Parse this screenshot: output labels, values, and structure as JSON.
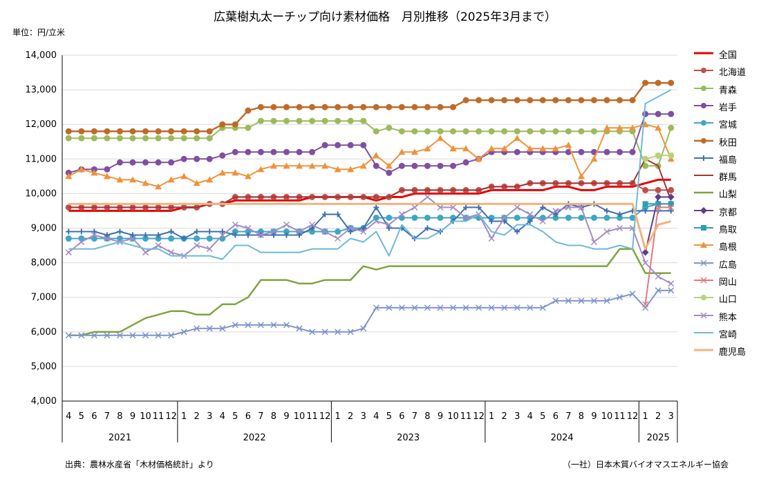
{
  "title": "広葉樹丸太ーチップ向け素材価格　月別推移（2025年3月まで）",
  "unit": "単位：円/立米",
  "source_left": "出典：農林水産省「木材価格統計」より",
  "source_right": "（一社）日本木質バイオマスエネルギー協会",
  "chart_data": {
    "type": "line",
    "ylim": [
      4000,
      14000
    ],
    "yticks": [
      "4,000",
      "5,000",
      "6,000",
      "7,000",
      "8,000",
      "9,000",
      "10,000",
      "11,000",
      "12,000",
      "13,000",
      "14,000"
    ],
    "grid": true,
    "legend_position": "right",
    "x_month_labels": [
      "4",
      "5",
      "6",
      "7",
      "8",
      "9",
      "10",
      "11",
      "12",
      "1",
      "2",
      "3",
      "4",
      "5",
      "6",
      "7",
      "8",
      "9",
      "10",
      "11",
      "12",
      "1",
      "2",
      "3",
      "4",
      "5",
      "6",
      "7",
      "8",
      "9",
      "10",
      "11",
      "12",
      "1",
      "2",
      "3",
      "4",
      "5",
      "6",
      "7",
      "8",
      "9",
      "10",
      "11",
      "12",
      "1",
      "2",
      "3"
    ],
    "x_year_groups": [
      {
        "label": "2021",
        "start": 0,
        "end": 8
      },
      {
        "label": "2022",
        "start": 9,
        "end": 20
      },
      {
        "label": "2023",
        "start": 21,
        "end": 32
      },
      {
        "label": "2024",
        "start": 33,
        "end": 44
      },
      {
        "label": "2025",
        "start": 45,
        "end": 47
      }
    ],
    "series": [
      {
        "name": "全国",
        "color": "#e60000",
        "marker": "none",
        "width": 3,
        "values": [
          9500,
          9500,
          9500,
          9500,
          9500,
          9500,
          9500,
          9500,
          9500,
          9600,
          9600,
          9700,
          9700,
          9800,
          9800,
          9800,
          9800,
          9800,
          9800,
          9900,
          9900,
          9900,
          9900,
          9900,
          9800,
          9900,
          9900,
          10000,
          10000,
          10000,
          10000,
          10000,
          10000,
          10100,
          10100,
          10100,
          10100,
          10100,
          10200,
          10200,
          10100,
          10100,
          10200,
          10200,
          10200,
          10300,
          10400,
          10400
        ]
      },
      {
        "name": "北海道",
        "color": "#c0504d",
        "marker": "circle",
        "width": 2,
        "values": [
          9600,
          9600,
          9600,
          9600,
          9600,
          9600,
          9600,
          9600,
          9600,
          9600,
          9600,
          9700,
          9700,
          9900,
          9900,
          9900,
          9900,
          9900,
          9900,
          9900,
          9900,
          9900,
          9900,
          9900,
          9900,
          9900,
          10100,
          10100,
          10100,
          10100,
          10100,
          10100,
          10100,
          10200,
          10200,
          10200,
          10300,
          10300,
          10300,
          10300,
          10300,
          10300,
          10300,
          10300,
          10300,
          10100,
          10100,
          10100
        ]
      },
      {
        "name": "青森",
        "color": "#9bbb59",
        "marker": "circle",
        "width": 2,
        "values": [
          11600,
          11600,
          11600,
          11600,
          11600,
          11600,
          11600,
          11600,
          11600,
          11600,
          11600,
          11600,
          11900,
          11900,
          11900,
          12100,
          12100,
          12100,
          12100,
          12100,
          12100,
          12100,
          12100,
          12100,
          11800,
          11900,
          11800,
          11800,
          11800,
          11800,
          11800,
          11800,
          11800,
          11800,
          11800,
          11800,
          11800,
          11800,
          11800,
          11800,
          11800,
          11800,
          11800,
          11800,
          11800,
          10800,
          10800,
          11900
        ]
      },
      {
        "name": "岩手",
        "color": "#7f4fa0",
        "marker": "circle",
        "width": 2,
        "values": [
          10600,
          10700,
          10700,
          10700,
          10900,
          10900,
          10900,
          10900,
          10900,
          11000,
          11000,
          11000,
          11100,
          11200,
          11200,
          11200,
          11200,
          11200,
          11200,
          11200,
          11400,
          11400,
          11400,
          11400,
          10800,
          10600,
          10800,
          10800,
          10800,
          10800,
          10800,
          10900,
          11000,
          11200,
          11200,
          11200,
          11200,
          11200,
          11200,
          11200,
          11200,
          11200,
          11200,
          11200,
          11200,
          12300,
          12300,
          12300
        ]
      },
      {
        "name": "宮城",
        "color": "#3fa6c4",
        "marker": "circle",
        "width": 2,
        "values": [
          8700,
          8700,
          8700,
          8700,
          8700,
          8700,
          8700,
          8700,
          8700,
          8700,
          8700,
          8700,
          8700,
          8900,
          8900,
          8900,
          8900,
          8900,
          8900,
          8900,
          8900,
          8900,
          9000,
          9000,
          9300,
          9300,
          9300,
          9300,
          9300,
          9300,
          9300,
          9300,
          9300,
          9300,
          9300,
          9300,
          9300,
          9300,
          9300,
          9300,
          9300,
          9300,
          9300,
          9300,
          9300,
          9600,
          9700,
          9700
        ]
      },
      {
        "name": "秋田",
        "color": "#c06a28",
        "marker": "circle",
        "width": 2.5,
        "values": [
          11800,
          11800,
          11800,
          11800,
          11800,
          11800,
          11800,
          11800,
          11800,
          11800,
          11800,
          11800,
          12000,
          12000,
          12400,
          12500,
          12500,
          12500,
          12500,
          12500,
          12500,
          12500,
          12500,
          12500,
          12500,
          12500,
          12500,
          12500,
          12500,
          12500,
          12500,
          12700,
          12700,
          12700,
          12700,
          12700,
          12700,
          12700,
          12700,
          12700,
          12700,
          12700,
          12700,
          12700,
          12700,
          13200,
          13200,
          13200
        ]
      },
      {
        "name": "福島",
        "color": "#3e6fb0",
        "marker": "plus",
        "width": 2,
        "values": [
          8900,
          8900,
          8900,
          8800,
          8900,
          8800,
          8800,
          8800,
          8900,
          8700,
          8900,
          8900,
          8900,
          8800,
          8800,
          8800,
          8800,
          8800,
          8800,
          9000,
          9400,
          9400,
          8900,
          9000,
          9600,
          9000,
          9000,
          8700,
          9000,
          8900,
          9200,
          9600,
          9600,
          9200,
          9200,
          8900,
          9200,
          9600,
          9400,
          9700,
          9600,
          9700,
          9500,
          9400,
          9500,
          9500,
          9500,
          9500
        ]
      },
      {
        "name": "群馬",
        "color": "#a83232",
        "marker": "none",
        "width": 2,
        "values": [
          9600,
          9600,
          9600,
          9600,
          9600,
          9600,
          9600,
          9600,
          9600,
          9600,
          9600,
          9700,
          9700,
          9900,
          9900,
          9900,
          9900,
          9900,
          9900,
          9900,
          9900,
          9900,
          9900,
          9900,
          9900,
          9900,
          10100,
          10100,
          10100,
          10100,
          10100,
          10100,
          10100,
          10200,
          10200,
          10200,
          10300,
          10300,
          10300,
          10300,
          10300,
          10300,
          10300,
          10300,
          10300,
          11000,
          10800,
          9800
        ]
      },
      {
        "name": "山梨",
        "color": "#7fa33c",
        "marker": "none",
        "width": 2.5,
        "values": [
          5900,
          5900,
          6000,
          6000,
          6000,
          6200,
          6400,
          6500,
          6600,
          6600,
          6500,
          6500,
          6800,
          6800,
          7000,
          7500,
          7500,
          7500,
          7400,
          7400,
          7500,
          7500,
          7500,
          7900,
          7800,
          7900,
          7900,
          7900,
          7900,
          7900,
          7900,
          7900,
          7900,
          7900,
          7900,
          7900,
          7900,
          7900,
          7900,
          7900,
          7900,
          7900,
          7900,
          8400,
          8400,
          7700,
          7700,
          7700
        ]
      },
      {
        "name": "京都",
        "color": "#5a3f8c",
        "marker": "diamond",
        "width": 2,
        "values": [
          null,
          null,
          null,
          null,
          null,
          null,
          null,
          null,
          null,
          null,
          null,
          null,
          null,
          null,
          null,
          null,
          null,
          null,
          null,
          null,
          null,
          null,
          null,
          null,
          null,
          null,
          null,
          null,
          null,
          null,
          null,
          null,
          null,
          null,
          null,
          null,
          null,
          null,
          null,
          null,
          null,
          null,
          null,
          null,
          null,
          8300,
          9900,
          9900
        ]
      },
      {
        "name": "鳥取",
        "color": "#2c9fb4",
        "marker": "square",
        "width": 2,
        "values": [
          null,
          null,
          null,
          null,
          null,
          null,
          null,
          null,
          null,
          null,
          null,
          null,
          null,
          null,
          null,
          null,
          null,
          null,
          null,
          null,
          null,
          null,
          null,
          null,
          null,
          null,
          null,
          null,
          null,
          null,
          null,
          null,
          null,
          null,
          null,
          null,
          null,
          null,
          null,
          null,
          null,
          null,
          null,
          null,
          null,
          9700,
          9700,
          9700
        ]
      },
      {
        "name": "島根",
        "color": "#f0923a",
        "marker": "triangle",
        "width": 2,
        "values": [
          10500,
          10700,
          10600,
          10500,
          10400,
          10400,
          10300,
          10200,
          10400,
          10500,
          10300,
          10400,
          10600,
          10600,
          10500,
          10700,
          10800,
          10800,
          10800,
          10800,
          10800,
          10700,
          10700,
          10800,
          11100,
          10800,
          11200,
          11200,
          11300,
          11600,
          11300,
          11300,
          11000,
          11300,
          11300,
          11600,
          11300,
          11300,
          11300,
          11400,
          10500,
          11000,
          11900,
          11900,
          11900,
          12000,
          11900,
          11000
        ]
      },
      {
        "name": "広島",
        "color": "#7d93c8",
        "marker": "cross",
        "width": 2,
        "values": [
          5900,
          5900,
          5900,
          5900,
          5900,
          5900,
          5900,
          5900,
          5900,
          6000,
          6100,
          6100,
          6100,
          6200,
          6200,
          6200,
          6200,
          6200,
          6100,
          6000,
          6000,
          6000,
          6000,
          6100,
          6700,
          6700,
          6700,
          6700,
          6700,
          6700,
          6700,
          6700,
          6700,
          6700,
          6700,
          6700,
          6700,
          6700,
          6900,
          6900,
          6900,
          6900,
          6900,
          7000,
          7100,
          6700,
          7200,
          7200
        ]
      },
      {
        "name": "岡山",
        "color": "#e07a7a",
        "marker": "cross",
        "width": 2,
        "values": [
          null,
          null,
          null,
          null,
          null,
          null,
          null,
          null,
          null,
          null,
          null,
          null,
          null,
          null,
          null,
          null,
          null,
          null,
          null,
          null,
          null,
          null,
          null,
          null,
          null,
          null,
          null,
          null,
          null,
          null,
          null,
          null,
          null,
          null,
          null,
          null,
          null,
          null,
          null,
          null,
          null,
          null,
          null,
          null,
          null,
          6800,
          9600,
          9600
        ]
      },
      {
        "name": "山口",
        "color": "#b7d27a",
        "marker": "circle",
        "width": 2,
        "values": [
          null,
          null,
          null,
          null,
          null,
          null,
          null,
          null,
          null,
          null,
          null,
          null,
          null,
          null,
          null,
          null,
          null,
          null,
          null,
          null,
          null,
          null,
          null,
          null,
          null,
          null,
          null,
          null,
          null,
          null,
          null,
          null,
          null,
          null,
          null,
          null,
          null,
          null,
          null,
          null,
          null,
          null,
          null,
          null,
          null,
          11000,
          11100,
          11100
        ]
      },
      {
        "name": "熊本",
        "color": "#a58cc4",
        "marker": "cross",
        "width": 2,
        "values": [
          8300,
          8600,
          8800,
          8700,
          8600,
          8700,
          8300,
          8500,
          8300,
          8200,
          8500,
          8400,
          8800,
          9100,
          9000,
          8800,
          8900,
          9100,
          8900,
          9100,
          8900,
          8700,
          9000,
          8900,
          9200,
          9100,
          9400,
          9600,
          9900,
          9600,
          9600,
          9300,
          9400,
          8700,
          9300,
          9600,
          9400,
          9200,
          9500,
          9600,
          9600,
          8600,
          8900,
          9000,
          9000,
          8000,
          7600,
          7400
        ]
      },
      {
        "name": "宮崎",
        "color": "#6cb9d8",
        "marker": "none",
        "width": 2,
        "values": [
          8400,
          8400,
          8400,
          8500,
          8600,
          8500,
          8400,
          8400,
          8200,
          8200,
          8200,
          8200,
          8100,
          8500,
          8500,
          8300,
          8300,
          8300,
          8300,
          8400,
          8400,
          8400,
          8700,
          8600,
          8900,
          8200,
          9100,
          8700,
          8700,
          8900,
          9200,
          9200,
          9400,
          8900,
          8800,
          9100,
          9100,
          8900,
          8600,
          8500,
          8500,
          8400,
          8400,
          8500,
          8400,
          12600,
          12800,
          13000
        ]
      },
      {
        "name": "鹿児島",
        "color": "#f4b27e",
        "marker": "none",
        "width": 3,
        "values": [
          9700,
          9700,
          9700,
          9700,
          9700,
          9700,
          9700,
          9700,
          9700,
          9700,
          9700,
          9700,
          9700,
          9700,
          9700,
          9700,
          9700,
          9700,
          9700,
          9700,
          9700,
          9700,
          9700,
          9700,
          9700,
          9700,
          9700,
          9700,
          9700,
          9700,
          9700,
          9700,
          9700,
          9700,
          9700,
          9700,
          9700,
          9700,
          9700,
          9700,
          9700,
          9700,
          9700,
          9700,
          9700,
          8400,
          9100,
          9200
        ]
      }
    ]
  }
}
